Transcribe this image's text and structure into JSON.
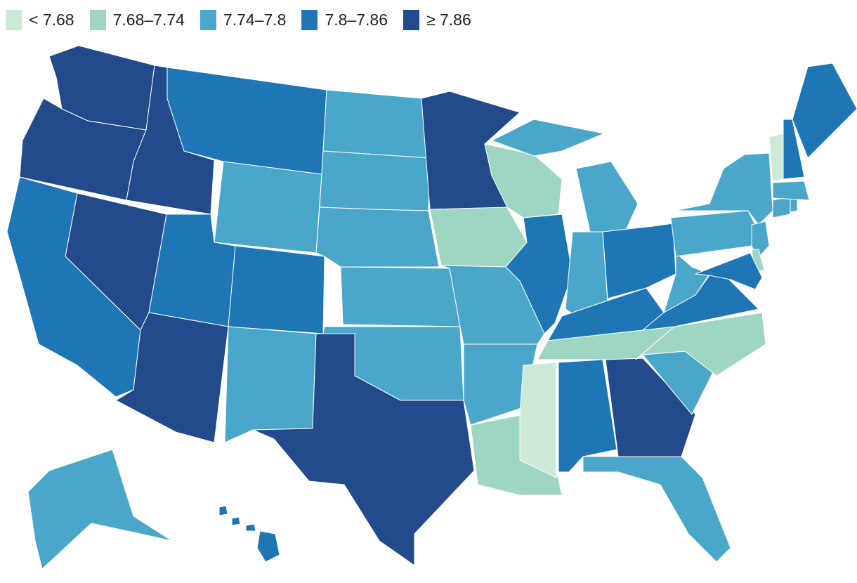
{
  "legend": [
    {
      "label": "< 7.68",
      "color": "#cce9d6"
    },
    {
      "label": "7.68–7.74",
      "color": "#9fd5c3"
    },
    {
      "label": "7.74–7.8",
      "color": "#4aa7ca"
    },
    {
      "label": "7.8–7.86",
      "color": "#1e77b4"
    },
    {
      "label": "≥ 7.86",
      "color": "#234a8a"
    }
  ],
  "states": {
    "WA": 4,
    "OR": 4,
    "ID": 4,
    "NV": 4,
    "AZ": 4,
    "MN": 4,
    "TX": 4,
    "GA": 4,
    "MT": 3,
    "CA": 3,
    "UT": 3,
    "CO": 3,
    "IL": 3,
    "OH": 3,
    "KY": 3,
    "VA": 3,
    "MD": 3,
    "AL": 3,
    "ME": 3,
    "NH": 3,
    "HI": 3,
    "ND": 2,
    "SD": 2,
    "WY": 2,
    "NE": 2,
    "KS": 2,
    "OK": 2,
    "NM": 2,
    "MO": 2,
    "AR": 2,
    "IN": 2,
    "MI": 2,
    "WV": 2,
    "PA": 2,
    "NY": 2,
    "NJ": 2,
    "CT": 2,
    "MA": 2,
    "RI": 2,
    "SC": 2,
    "FL": 2,
    "AK": 2,
    "WI": 1,
    "IA": 1,
    "TN": 1,
    "NC": 1,
    "LA": 1,
    "DE": 1,
    "MS": 0,
    "VT": 0
  }
}
